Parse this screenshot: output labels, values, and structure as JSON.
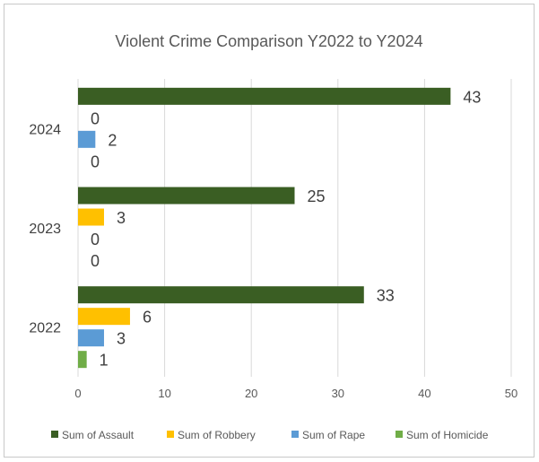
{
  "chart_data": {
    "type": "bar",
    "orientation": "horizontal",
    "title": "Violent Crime Comparison Y2022 to Y2024",
    "categories": [
      "2022",
      "2023",
      "2024"
    ],
    "series": [
      {
        "name": "Sum of Assault",
        "color": "#3a5e23",
        "values": [
          33,
          25,
          43
        ]
      },
      {
        "name": "Sum of Robbery",
        "color": "#ffc000",
        "values": [
          6,
          3,
          0
        ]
      },
      {
        "name": "Sum of Rape",
        "color": "#5b9bd5",
        "values": [
          3,
          0,
          2
        ]
      },
      {
        "name": "Sum of Homicide",
        "color": "#70ad47",
        "values": [
          1,
          0,
          0
        ]
      }
    ],
    "xlim": [
      0,
      50
    ],
    "xticks": [
      "0",
      "10",
      "20",
      "30",
      "40",
      "50"
    ],
    "grid": true,
    "data_labels": true,
    "legend_position": "bottom"
  }
}
